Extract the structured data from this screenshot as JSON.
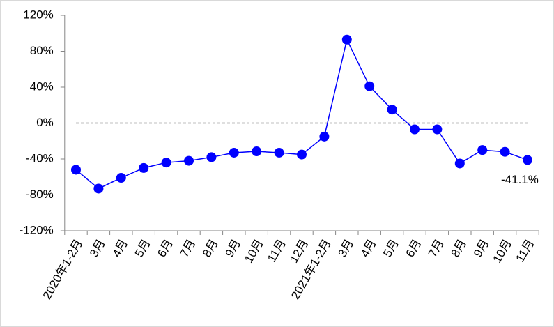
{
  "chart_data": {
    "type": "line",
    "categories": [
      "2020年1-2月",
      "3月",
      "4月",
      "5月",
      "6月",
      "7月",
      "8月",
      "9月",
      "10月",
      "11月",
      "12月",
      "2021年1-2月",
      "3月",
      "4月",
      "5月",
      "6月",
      "7月",
      "8月",
      "9月",
      "10月",
      "11月"
    ],
    "series": [
      {
        "color": "#0000ff",
        "values": [
          -52,
          -73,
          -61,
          -50,
          -44,
          -42,
          -38,
          -33,
          -31.5,
          -33,
          -35,
          -15,
          93,
          41,
          15,
          -7,
          -7,
          -45,
          -30,
          -32,
          -41.1
        ],
        "value_labels": [
          null,
          null,
          null,
          null,
          null,
          null,
          null,
          null,
          null,
          null,
          null,
          null,
          null,
          null,
          null,
          null,
          null,
          null,
          null,
          null,
          "-41.1%"
        ]
      }
    ],
    "ylim": [
      -120,
      120
    ],
    "yticks": [
      {
        "value": -120,
        "label": "-120%"
      },
      {
        "value": -80,
        "label": "-80%"
      },
      {
        "value": -40,
        "label": "-40%"
      },
      {
        "value": 0,
        "label": "0%"
      },
      {
        "value": 40,
        "label": "40%"
      },
      {
        "value": 80,
        "label": "80%"
      },
      {
        "value": 120,
        "label": "120%"
      }
    ],
    "reference_line": 0
  }
}
